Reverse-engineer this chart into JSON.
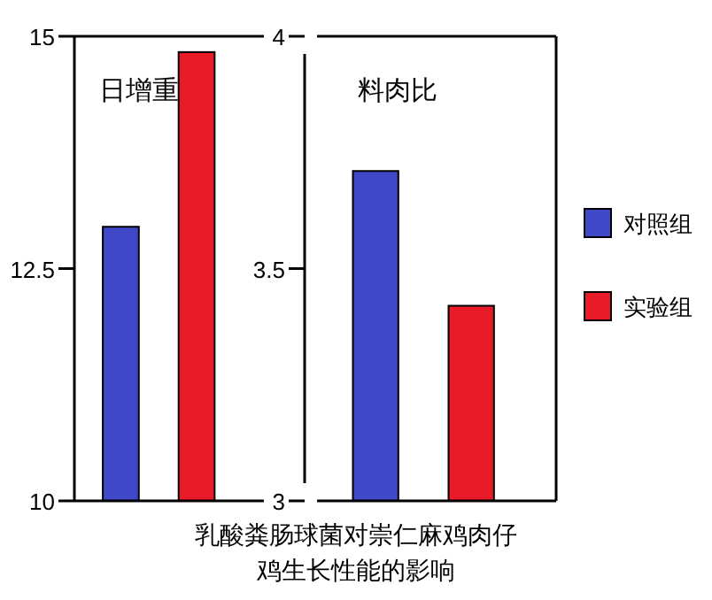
{
  "chart_data": [
    {
      "type": "bar",
      "title": "日增重",
      "categories": [
        null
      ],
      "ylim": [
        10,
        15
      ],
      "yticks": [
        10,
        12.5,
        15
      ],
      "grid": false,
      "legend": false,
      "series": [
        {
          "color": "#4048c8",
          "values": [
            12.95
          ]
        },
        {
          "color": "#e81c28",
          "values": [
            14.83
          ]
        }
      ],
      "annotations": [
        "乳酸粪肠球菌对崇仁麻鸡肉仔鸡生长性能的影响"
      ]
    },
    {
      "type": "bar",
      "title": "料肉比",
      "categories": [
        null
      ],
      "ylim": [
        3,
        4
      ],
      "yticks": [
        3,
        3.5,
        4
      ],
      "grid": false,
      "legend": "right",
      "series": [
        {
          "name": "对照组",
          "color": "#4048c8",
          "values": [
            3.71
          ]
        },
        {
          "name": "实验组",
          "color": "#e81c28",
          "values": [
            3.42
          ]
        }
      ]
    }
  ]
}
